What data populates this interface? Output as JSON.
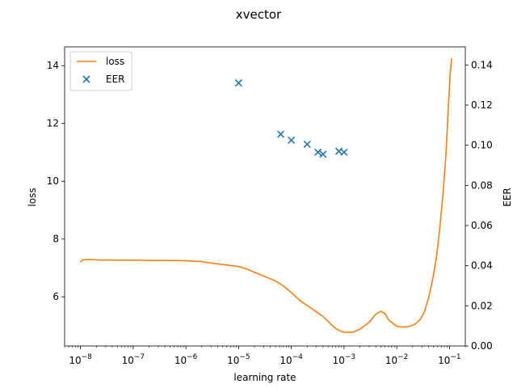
{
  "chart_data": {
    "type": "line",
    "title": "xvector",
    "xlabel": "learning rate",
    "ylabel_left": "loss",
    "ylabel_right": "EER",
    "x_scale": "log",
    "xlim": [
      5e-09,
      0.2
    ],
    "ylim_left": [
      4.3,
      14.65
    ],
    "ylim_right": [
      0.0,
      0.149
    ],
    "x_ticks": [
      {
        "value": 1e-08,
        "base": "10",
        "exp": "−8"
      },
      {
        "value": 1e-07,
        "base": "10",
        "exp": "−7"
      },
      {
        "value": 1e-06,
        "base": "10",
        "exp": "−6"
      },
      {
        "value": 1e-05,
        "base": "10",
        "exp": "−5"
      },
      {
        "value": 0.0001,
        "base": "10",
        "exp": "−4"
      },
      {
        "value": 0.001,
        "base": "10",
        "exp": "−3"
      },
      {
        "value": 0.01,
        "base": "10",
        "exp": "−2"
      },
      {
        "value": 0.1,
        "base": "10",
        "exp": "−1"
      }
    ],
    "y_ticks_left": [
      "6",
      "8",
      "10",
      "12",
      "14"
    ],
    "y_ticks_right": [
      "0.00",
      "0.02",
      "0.04",
      "0.06",
      "0.08",
      "0.10",
      "0.12",
      "0.14"
    ],
    "grid": false,
    "legend_position": "top-left",
    "colors": {
      "loss": "#ff7f0e",
      "EER": "#1f77b4"
    },
    "series": [
      {
        "name": "loss",
        "axis": "left",
        "style": "line",
        "points": [
          [
            1e-08,
            7.2
          ],
          [
            1.1e-08,
            7.28
          ],
          [
            1.5e-08,
            7.29
          ],
          [
            2e-08,
            7.28
          ],
          [
            5e-08,
            7.27
          ],
          [
            1e-07,
            7.27
          ],
          [
            2e-07,
            7.26
          ],
          [
            5e-07,
            7.26
          ],
          [
            1e-06,
            7.25
          ],
          [
            2e-06,
            7.22
          ],
          [
            3e-06,
            7.17
          ],
          [
            5e-06,
            7.12
          ],
          [
            1e-05,
            7.05
          ],
          [
            1.5e-05,
            6.95
          ],
          [
            2e-05,
            6.85
          ],
          [
            3e-05,
            6.72
          ],
          [
            5e-05,
            6.55
          ],
          [
            7e-05,
            6.38
          ],
          [
            0.0001,
            6.15
          ],
          [
            0.00015,
            5.85
          ],
          [
            0.0002,
            5.7
          ],
          [
            0.0003,
            5.48
          ],
          [
            0.0004,
            5.32
          ],
          [
            0.0005,
            5.15
          ],
          [
            0.0006,
            5.0
          ],
          [
            0.0007,
            4.9
          ],
          [
            0.0009,
            4.8
          ],
          [
            0.0011,
            4.77
          ],
          [
            0.0015,
            4.78
          ],
          [
            0.002,
            4.88
          ],
          [
            0.003,
            5.12
          ],
          [
            0.004,
            5.4
          ],
          [
            0.005,
            5.5
          ],
          [
            0.006,
            5.42
          ],
          [
            0.007,
            5.2
          ],
          [
            0.01,
            4.98
          ],
          [
            0.013,
            4.95
          ],
          [
            0.017,
            4.97
          ],
          [
            0.022,
            5.05
          ],
          [
            0.028,
            5.22
          ],
          [
            0.033,
            5.45
          ],
          [
            0.04,
            5.95
          ],
          [
            0.048,
            6.6
          ],
          [
            0.056,
            7.3
          ],
          [
            0.065,
            8.3
          ],
          [
            0.075,
            9.5
          ],
          [
            0.085,
            10.8
          ],
          [
            0.095,
            12.5
          ],
          [
            0.103,
            13.7
          ],
          [
            0.11,
            14.25
          ]
        ]
      },
      {
        "name": "EER",
        "axis": "right",
        "style": "scatter",
        "marker": "x",
        "points": [
          [
            1e-05,
            0.131
          ],
          [
            6.3e-05,
            0.1055
          ],
          [
            0.0001,
            0.1025
          ],
          [
            0.0002,
            0.1005
          ],
          [
            0.00032,
            0.0965
          ],
          [
            0.0004,
            0.0955
          ],
          [
            0.0008,
            0.097
          ],
          [
            0.001,
            0.0965
          ]
        ]
      }
    ]
  }
}
